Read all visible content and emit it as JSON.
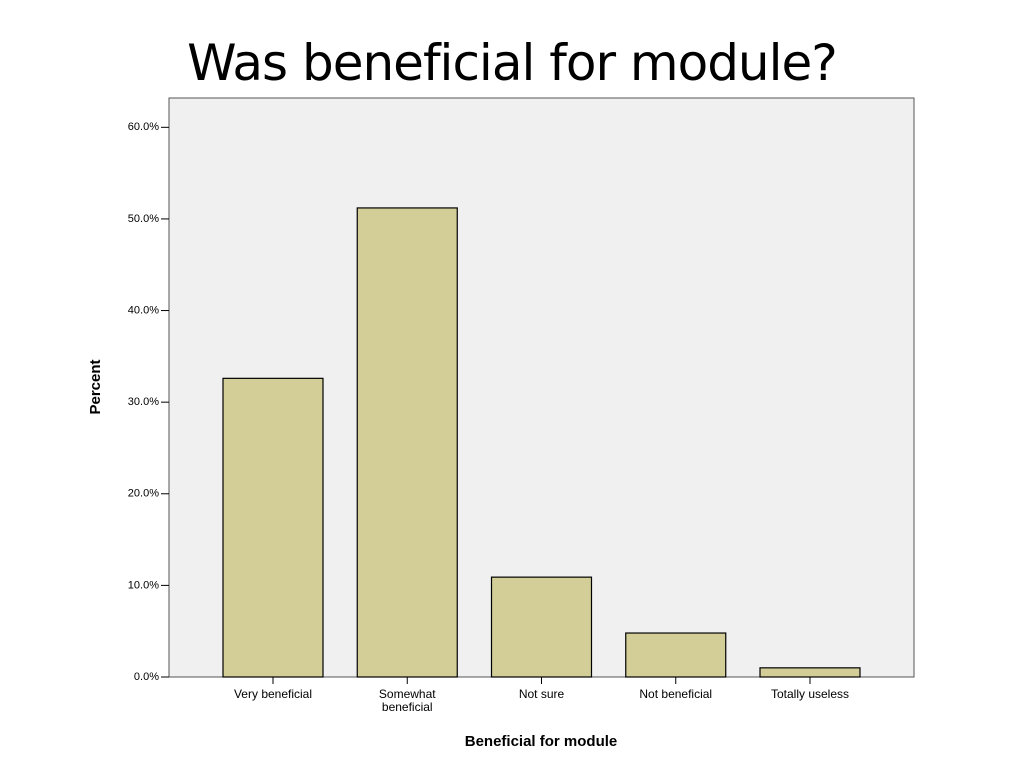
{
  "chart_data": {
    "type": "bar",
    "title": "Was beneficial for module?",
    "x_label": "Beneficial for module",
    "y_label": "Percent",
    "categories": [
      "Very beneficial",
      "Somewhat beneficial",
      "Not sure",
      "Not beneficial",
      "Totally useless"
    ],
    "values": [
      32.6,
      51.2,
      10.9,
      4.8,
      1.0
    ],
    "color": "#d3ce97",
    "ylim": [
      0,
      63.2
    ],
    "yticks": [
      {
        "value": 0,
        "label": "0.0%"
      },
      {
        "value": 10,
        "label": "10.0%"
      },
      {
        "value": 20,
        "label": "20.0%"
      },
      {
        "value": 30,
        "label": "30.0%"
      },
      {
        "value": 40,
        "label": "40.0%"
      },
      {
        "value": 50,
        "label": "50.0%"
      },
      {
        "value": 60,
        "label": "60.0%"
      }
    ],
    "grid": false
  }
}
